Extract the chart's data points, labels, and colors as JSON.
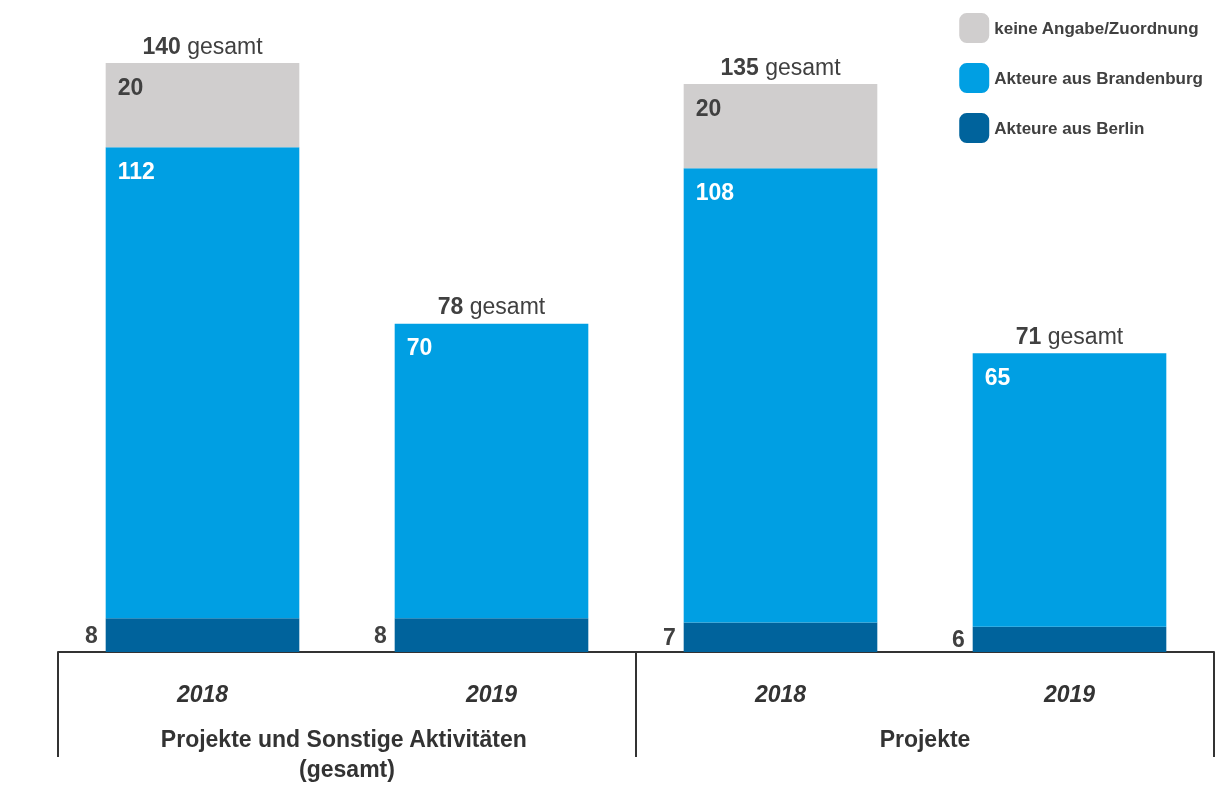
{
  "chart_data": {
    "type": "bar",
    "stacked": true,
    "data_labels": true,
    "legend": "top right",
    "categories": [
      "2018",
      "2019",
      "2018",
      "2019"
    ],
    "series": [
      {
        "name": "Akteure aus Berlin",
        "color": "#00639c",
        "values": [
          8,
          8,
          7,
          6
        ]
      },
      {
        "name": "Akteure aus Brandenburg",
        "color": "#009fe3",
        "values": [
          112,
          70,
          108,
          65
        ]
      },
      {
        "name": "keine Angabe/Zuordnung",
        "color": "#d0cece",
        "values": [
          20,
          null,
          20,
          null
        ]
      }
    ],
    "totals": [
      "140 gesamt",
      "78 gesamt",
      "135 gesamt",
      "71 gesamt"
    ],
    "annotations": [
      "Projekte und Sonstige Aktivitäten (gesamt)",
      "Projekte"
    ]
  }
}
